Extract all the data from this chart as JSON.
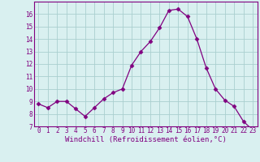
{
  "x": [
    0,
    1,
    2,
    3,
    4,
    5,
    6,
    7,
    8,
    9,
    10,
    11,
    12,
    13,
    14,
    15,
    16,
    17,
    18,
    19,
    20,
    21,
    22,
    23
  ],
  "y": [
    8.8,
    8.5,
    9.0,
    9.0,
    8.4,
    7.8,
    8.5,
    9.2,
    9.7,
    10.0,
    11.9,
    13.0,
    13.8,
    14.9,
    16.3,
    16.4,
    15.8,
    14.0,
    11.7,
    10.0,
    9.1,
    8.6,
    7.4,
    6.7
  ],
  "line_color": "#800080",
  "marker": "D",
  "marker_size": 2.5,
  "bg_color": "#d9f0f0",
  "grid_color": "#aacfcf",
  "xlabel": "Windchill (Refroidissement éolien,°C)",
  "ylim": [
    7,
    17
  ],
  "xlim": [
    -0.5,
    23.5
  ],
  "yticks": [
    7,
    8,
    9,
    10,
    11,
    12,
    13,
    14,
    15,
    16
  ],
  "xticks": [
    0,
    1,
    2,
    3,
    4,
    5,
    6,
    7,
    8,
    9,
    10,
    11,
    12,
    13,
    14,
    15,
    16,
    17,
    18,
    19,
    20,
    21,
    22,
    23
  ],
  "xlabel_fontsize": 6.5,
  "tick_fontsize": 5.5,
  "spine_color": "#800080",
  "linewidth": 0.9
}
